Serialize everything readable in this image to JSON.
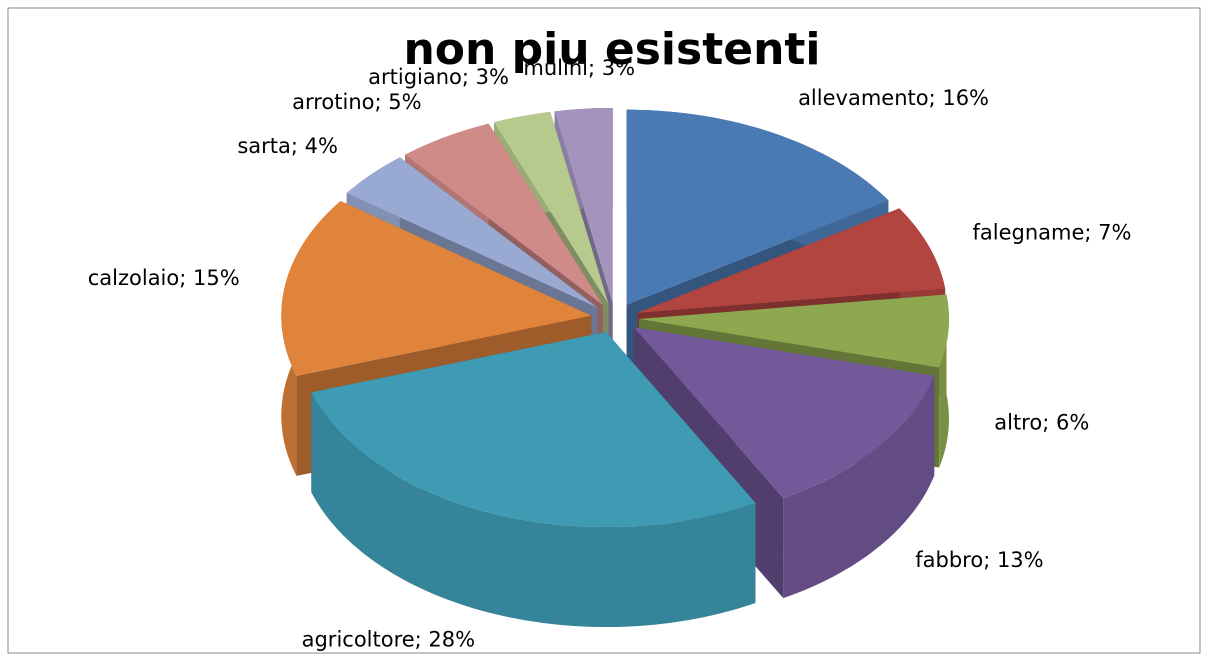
{
  "chart_data": {
    "type": "pie",
    "title": "non piu esistenti",
    "values": [
      16,
      7,
      6,
      13,
      28,
      15,
      4,
      5,
      3,
      3
    ],
    "value_labels": [
      "allevamento; 16%",
      "falegname; 7%",
      "altro; 6%",
      "fabbro; 13%",
      "agricoltore; 28%",
      "calzolaio; 15%",
      "sarta; 4%",
      "arrotino; 5%",
      "artigiano; 3%",
      "mulini; 3%"
    ],
    "colors": [
      "#4a7ab4",
      "#b34541",
      "#8ea84f",
      "#74599a",
      "#3f9bb4",
      "#e0843c",
      "#98a9d2",
      "#d08a88",
      "#b6ca8e",
      "#a393bd"
    ]
  }
}
